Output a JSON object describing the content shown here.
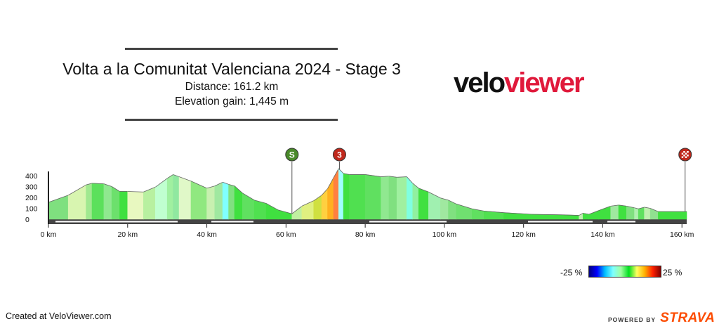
{
  "title": "Volta a la Comunitat Valenciana 2024 - Stage 3",
  "distance": "Distance: 161.2 km",
  "elevation_gain": "Elevation gain: 1,445 m",
  "logo": {
    "part1": "velo",
    "part2": "viewer",
    "color_dark": "#111111",
    "color_accent": "#e0193b"
  },
  "legend": {
    "min_label": "-25 %",
    "max_label": "25 %"
  },
  "footer": {
    "credit": "Created at VeloViewer.com",
    "powered_by": "POWERED BY",
    "brand": "STRAVA",
    "brand_color": "#fc4c02"
  },
  "markers": [
    {
      "label": "S",
      "km": 61.5,
      "color": "#4a8a2a",
      "kind": "start"
    },
    {
      "label": "3",
      "km": 73.5,
      "color": "#c0281c",
      "kind": "climb-category"
    },
    {
      "label": "",
      "km": 160.8,
      "color": "#c0281c",
      "kind": "finish"
    }
  ],
  "chart_data": {
    "type": "area",
    "xlabel": "",
    "ylabel": "",
    "xlim": [
      0,
      161.2
    ],
    "ylim": [
      0,
      400
    ],
    "x_ticks": [
      "0 km",
      "20 km",
      "40 km",
      "60 km",
      "80 km",
      "100 km",
      "120 km",
      "140 km",
      "160 km"
    ],
    "x_tick_values": [
      0,
      20,
      40,
      60,
      80,
      100,
      120,
      140,
      160
    ],
    "y_ticks": [
      "400",
      "300",
      "200",
      "100",
      "0"
    ],
    "y_tick_values": [
      400,
      300,
      200,
      100,
      0
    ],
    "series": [
      {
        "km": [
          0,
          5,
          9.5,
          11,
          14,
          16,
          18,
          20,
          24,
          27,
          30,
          31.5,
          33,
          36,
          40,
          42,
          44,
          45.5,
          47,
          49,
          52,
          55,
          58,
          61.5,
          64,
          67,
          69,
          70.5,
          72,
          73.3,
          74.5,
          76,
          80,
          84,
          86,
          88,
          90.5,
          92,
          93.5,
          96,
          99,
          101,
          103,
          107,
          110,
          115,
          122,
          130,
          134,
          135,
          136.5,
          139,
          142,
          144,
          146,
          148,
          149,
          150.5,
          152,
          154,
          161.2
        ],
        "elevation": [
          155,
          220,
          315,
          330,
          325,
          300,
          255,
          255,
          250,
          295,
          375,
          410,
          390,
          350,
          285,
          305,
          340,
          320,
          305,
          240,
          175,
          145,
          85,
          50,
          120,
          170,
          220,
          280,
          380,
          465,
          420,
          410,
          410,
          390,
          395,
          385,
          390,
          330,
          285,
          250,
          195,
          175,
          140,
          95,
          75,
          60,
          45,
          40,
          35,
          55,
          45,
          80,
          120,
          130,
          120,
          105,
          95,
          110,
          100,
          70,
          70
        ]
      }
    ],
    "segment_colors": [
      "#7fe07f",
      "#d8f5b0",
      "#a0e890",
      "#5ce05c",
      "#90e890",
      "#6ce06c",
      "#40e040",
      "#e8f8c0",
      "#b8f0a0",
      "#c0ffd0",
      "#a0f0a0",
      "#90e8a0",
      "#e0f8c8",
      "#90e880",
      "#c8f0b0",
      "#a0e8a0",
      "#80ffff",
      "#80e080",
      "#40e040",
      "#60e060",
      "#50e050",
      "#40e040",
      "#40e040",
      "#c0f0a0",
      "#e0f080",
      "#d0e040",
      "#ffd040",
      "#ffb020",
      "#ff8040",
      "#a0ffff",
      "#40e040",
      "#50e050",
      "#60e060",
      "#90e890",
      "#80e080",
      "#a0f0a0",
      "#80ffe0",
      "#90f0a0",
      "#40e040",
      "#a0f0b0",
      "#a0e8a0",
      "#80e080",
      "#70e070",
      "#60e060",
      "#50e050",
      "#40e040",
      "#40e040",
      "#40e040",
      "#c0f0b0",
      "#40e040",
      "#40e040",
      "#40e040",
      "#a0e8a0",
      "#40e040",
      "#80e080",
      "#b0f0b0",
      "#60e060",
      "#c0f0b0",
      "#90e090",
      "#40e040"
    ]
  }
}
